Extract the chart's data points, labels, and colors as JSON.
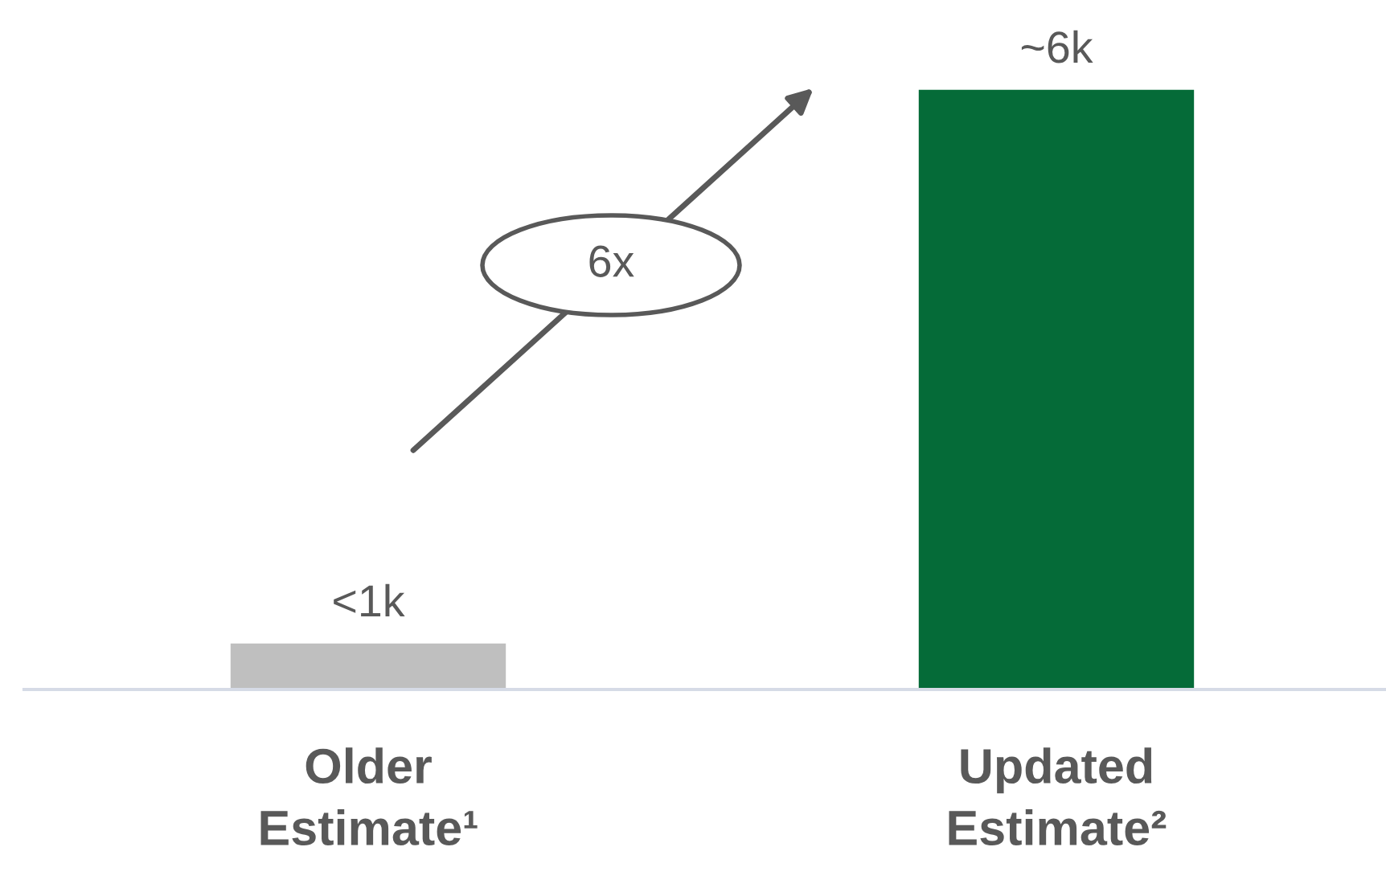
{
  "chart_data": {
    "type": "bar",
    "tick_labels": "x",
    "categories": [
      "Older\nEstimate¹",
      "Updated\nEstimate²"
    ],
    "values": [
      460,
      6000
    ],
    "colors": [
      "#bfbfbf",
      "#056b38"
    ],
    "value_labels": [
      "<1k",
      "~6k"
    ],
    "annotations": [
      "6x"
    ]
  }
}
